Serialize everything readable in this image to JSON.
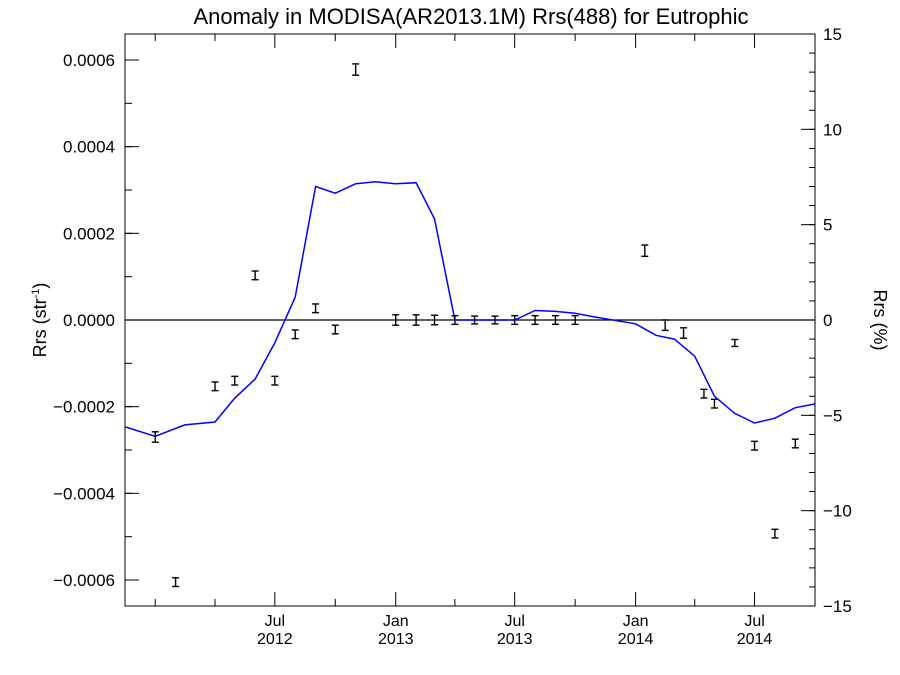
{
  "chart_data": {
    "type": "line",
    "title": "Anomaly in MODISA(AR2013.1M) Rrs(488) for Eutrophic",
    "xlabel": "",
    "ylabel": "Rrs (str",
    "ylabel_sup": "-1",
    "ylabel_tail": ")",
    "y2label": "Rrs (%)",
    "xlim": [
      "2011-11-16",
      "2014-10-01"
    ],
    "ylim": [
      -0.00066,
      0.00066
    ],
    "y2lim": [
      -15,
      15
    ],
    "xtick_labels": [
      {
        "date": "2012-07-01",
        "line1": "Jul",
        "line2": "2012"
      },
      {
        "date": "2013-01-01",
        "line1": "Jan",
        "line2": "2013"
      },
      {
        "date": "2013-07-01",
        "line1": "Jul",
        "line2": "2013"
      },
      {
        "date": "2014-01-01",
        "line1": "Jan",
        "line2": "2014"
      },
      {
        "date": "2014-07-01",
        "line1": "Jul",
        "line2": "2014"
      }
    ],
    "xtick_minor": [
      "2012-01-01",
      "2012-04-01",
      "2012-10-01",
      "2013-04-01",
      "2013-10-01",
      "2014-04-01",
      "2014-10-01"
    ],
    "ytick_labels": [
      "0.0006",
      "0.0004",
      "0.0002",
      "0.0000",
      "−0.0002",
      "−0.0004",
      "−0.0006"
    ],
    "ytick_values": [
      0.0006,
      0.0004,
      0.0002,
      0,
      -0.0002,
      -0.0004,
      -0.0006
    ],
    "y2tick_labels": [
      "15",
      "10",
      "5",
      "0",
      "−5",
      "−10",
      "−15"
    ],
    "y2tick_values": [
      15,
      10,
      5,
      0,
      -5,
      -10,
      -15
    ],
    "zero_line": true,
    "series": [
      {
        "name": "",
        "kind": "errorbar",
        "axis": "left",
        "color": "#000000",
        "points": [
          {
            "x": "2012-01-01",
            "y": -0.00027,
            "err": 1.2e-05
          },
          {
            "x": "2012-02-01",
            "y": -0.000605,
            "err": 1e-05
          },
          {
            "x": "2012-04-01",
            "y": -0.000153,
            "err": 1e-05
          },
          {
            "x": "2012-05-01",
            "y": -0.00014,
            "err": 1e-05
          },
          {
            "x": "2012-06-01",
            "y": 0.000103,
            "err": 1e-05
          },
          {
            "x": "2012-07-01",
            "y": -0.00014,
            "err": 1e-05
          },
          {
            "x": "2012-08-01",
            "y": -3.3e-05,
            "err": 1e-05
          },
          {
            "x": "2012-09-01",
            "y": 2.7e-05,
            "err": 1e-05
          },
          {
            "x": "2012-10-01",
            "y": -2.2e-05,
            "err": 1e-05
          },
          {
            "x": "2012-11-01",
            "y": 0.000578,
            "err": 1.3e-05
          },
          {
            "x": "2013-01-01",
            "y": 0.0,
            "err": 1.2e-05
          },
          {
            "x": "2013-02-01",
            "y": 0.0,
            "err": 1.2e-05
          },
          {
            "x": "2013-03-01",
            "y": 0.0,
            "err": 1.1e-05
          },
          {
            "x": "2013-04-01",
            "y": 0.0,
            "err": 1e-05
          },
          {
            "x": "2013-05-01",
            "y": 0.0,
            "err": 9e-06
          },
          {
            "x": "2013-06-01",
            "y": 0.0,
            "err": 9e-06
          },
          {
            "x": "2013-07-01",
            "y": 0.0,
            "err": 1e-05
          },
          {
            "x": "2013-08-01",
            "y": 0.0,
            "err": 1e-05
          },
          {
            "x": "2013-09-01",
            "y": 0.0,
            "err": 1e-05
          },
          {
            "x": "2013-10-01",
            "y": 0.0,
            "err": 1e-05
          },
          {
            "x": "2014-01-15",
            "y": 0.00016,
            "err": 1.3e-05
          },
          {
            "x": "2014-02-15",
            "y": -1.2e-05,
            "err": 1.2e-05
          },
          {
            "x": "2014-03-15",
            "y": -3e-05,
            "err": 1.2e-05
          },
          {
            "x": "2014-04-15",
            "y": -0.00017,
            "err": 1e-05
          },
          {
            "x": "2014-05-01",
            "y": -0.000193,
            "err": 1e-05
          },
          {
            "x": "2014-06-01",
            "y": -5.3e-05,
            "err": 8e-06
          },
          {
            "x": "2014-07-01",
            "y": -0.00029,
            "err": 1e-05
          },
          {
            "x": "2014-08-01",
            "y": -0.000493,
            "err": 1e-05
          },
          {
            "x": "2014-09-01",
            "y": -0.000285,
            "err": 1e-05
          }
        ]
      },
      {
        "name": "",
        "kind": "line",
        "axis": "right",
        "color": "#0000ff",
        "points": [
          {
            "x": "2011-11-16",
            "y": -5.6
          },
          {
            "x": "2012-01-01",
            "y": -6.1
          },
          {
            "x": "2012-02-15",
            "y": -5.5
          },
          {
            "x": "2012-04-01",
            "y": -5.35
          },
          {
            "x": "2012-05-01",
            "y": -4.1
          },
          {
            "x": "2012-06-01",
            "y": -3.1
          },
          {
            "x": "2012-07-01",
            "y": -1.2
          },
          {
            "x": "2012-08-01",
            "y": 1.2
          },
          {
            "x": "2012-09-01",
            "y": 7.0
          },
          {
            "x": "2012-10-01",
            "y": 6.65
          },
          {
            "x": "2012-11-01",
            "y": 7.15
          },
          {
            "x": "2012-12-01",
            "y": 7.25
          },
          {
            "x": "2013-01-01",
            "y": 7.15
          },
          {
            "x": "2013-02-01",
            "y": 7.2
          },
          {
            "x": "2013-03-01",
            "y": 5.3
          },
          {
            "x": "2013-04-01",
            "y": 0.0
          },
          {
            "x": "2013-07-01",
            "y": 0.0
          },
          {
            "x": "2013-08-01",
            "y": 0.5
          },
          {
            "x": "2013-09-01",
            "y": 0.45
          },
          {
            "x": "2013-10-01",
            "y": 0.35
          },
          {
            "x": "2013-11-01",
            "y": 0.15
          },
          {
            "x": "2014-01-01",
            "y": -0.2
          },
          {
            "x": "2014-02-01",
            "y": -0.8
          },
          {
            "x": "2014-03-01",
            "y": -1.0
          },
          {
            "x": "2014-04-01",
            "y": -1.9
          },
          {
            "x": "2014-05-01",
            "y": -4.0
          },
          {
            "x": "2014-06-01",
            "y": -4.9
          },
          {
            "x": "2014-07-01",
            "y": -5.4
          },
          {
            "x": "2014-08-01",
            "y": -5.15
          },
          {
            "x": "2014-09-01",
            "y": -4.6
          },
          {
            "x": "2014-10-01",
            "y": -4.4
          }
        ]
      }
    ]
  }
}
